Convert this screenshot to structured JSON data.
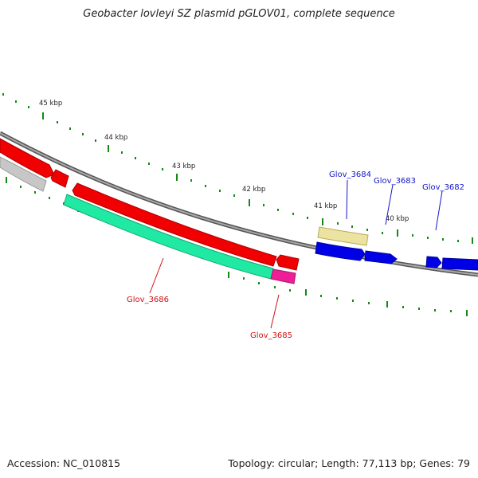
{
  "title": "Geobacter lovleyi SZ plasmid pGLOV01, complete sequence",
  "footer": {
    "accession": "Accession: NC_010815",
    "summary": "Topology: circular; Length: 77,113 bp; Genes: 79"
  },
  "colors": {
    "tick": "#138a13",
    "backbone": "#7a7a7a",
    "forward_cds": "#0000e6",
    "reverse_cds": "#f00000",
    "reverse_rna": "#1fe9a2",
    "misc": "#ece3a0",
    "pseudo": "#ee1f96",
    "other": "#c0c0c0",
    "forward_label": "#1515c8",
    "reverse_label": "#d01010"
  },
  "ruler": {
    "labels": [
      "45 kbp",
      "44 kbp",
      "43 kbp",
      "42 kbp",
      "41 kbp",
      "40 kbp"
    ]
  },
  "genes": {
    "forward": [
      "Glov_3684",
      "Glov_3683",
      "Glov_3682"
    ],
    "reverse": [
      "Glov_3686",
      "Glov_3685"
    ]
  }
}
